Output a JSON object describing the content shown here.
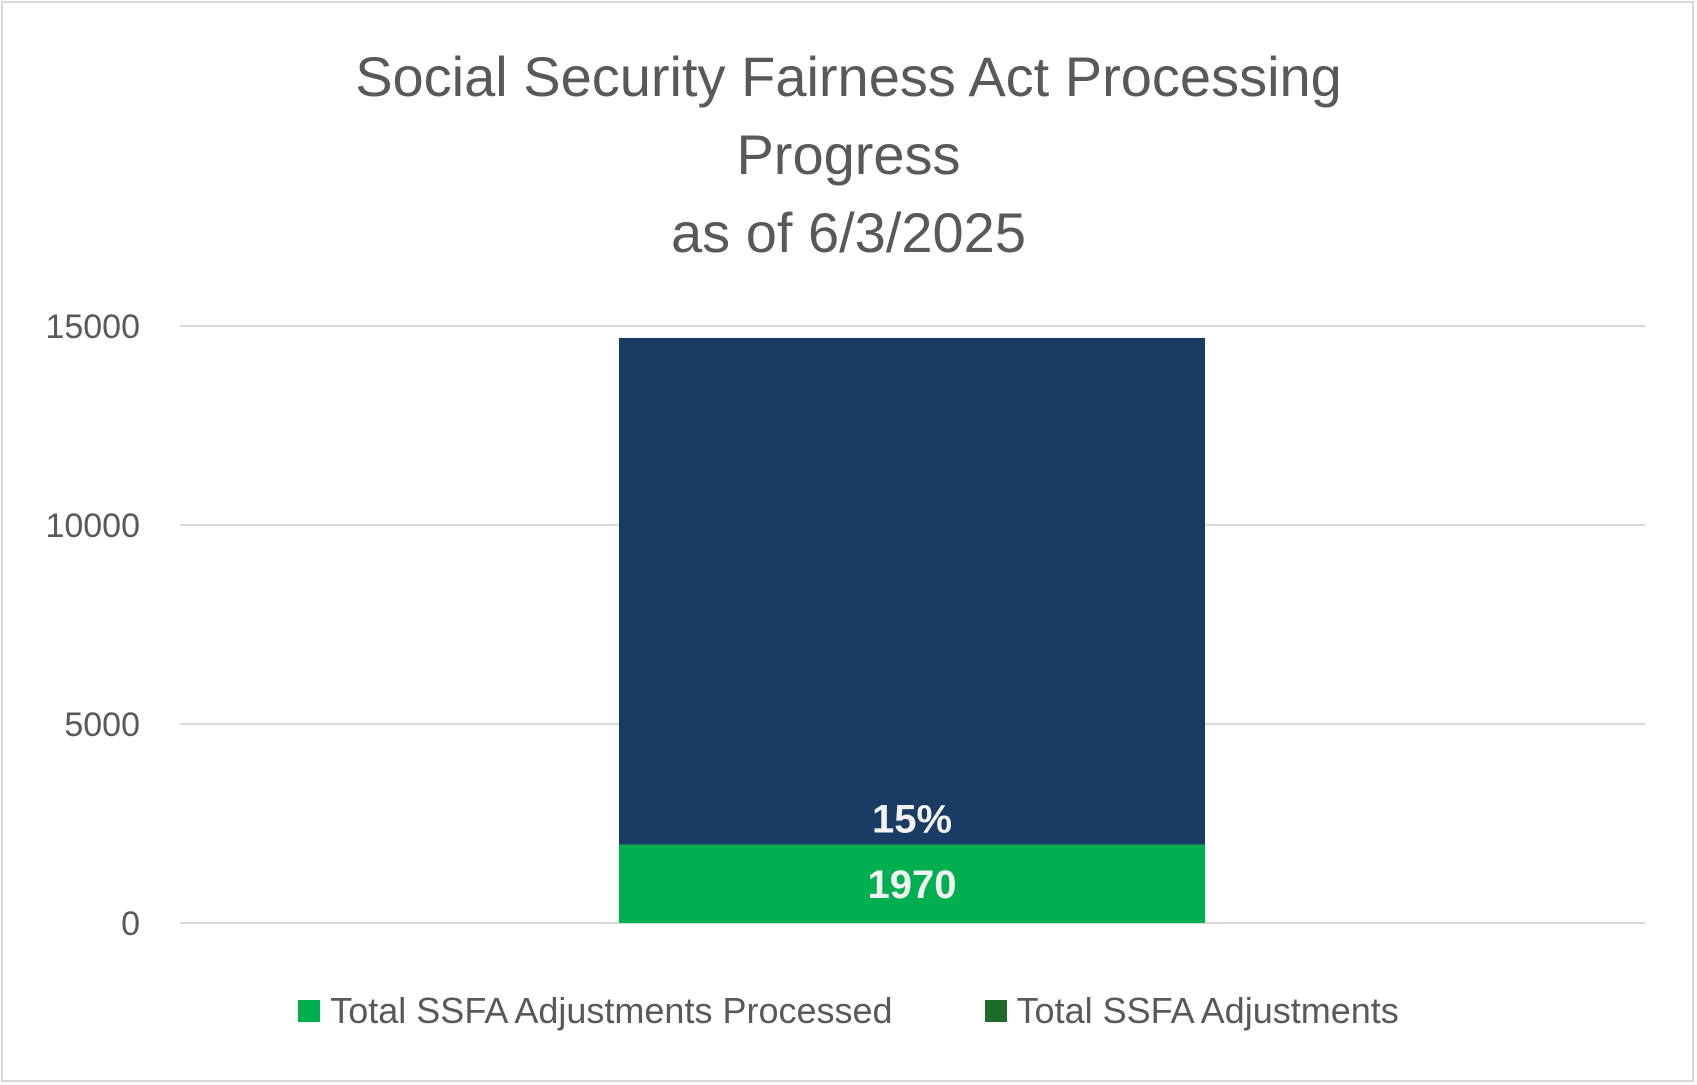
{
  "chart_data": {
    "type": "bar",
    "stacked": true,
    "title_lines": [
      "Social Security Fairness Act Processing",
      "Progress",
      "as of 6/3/2025"
    ],
    "categories": [
      ""
    ],
    "series": [
      {
        "name": "Total SSFA Adjustments Processed",
        "values": [
          1970
        ],
        "color": "#00b050",
        "data_label": "1970"
      },
      {
        "name": "Total SSFA Adjustments",
        "values": [
          12730
        ],
        "color": "#1a3b63",
        "legend_color": "#1e6b2a",
        "data_label": "15%"
      }
    ],
    "y_ticks": [
      0,
      5000,
      10000,
      15000
    ],
    "y_tick_labels": [
      "0",
      "5000",
      "10000",
      "15000"
    ],
    "ylim": [
      0,
      15000
    ],
    "grid": true,
    "legend_position": "bottom"
  }
}
